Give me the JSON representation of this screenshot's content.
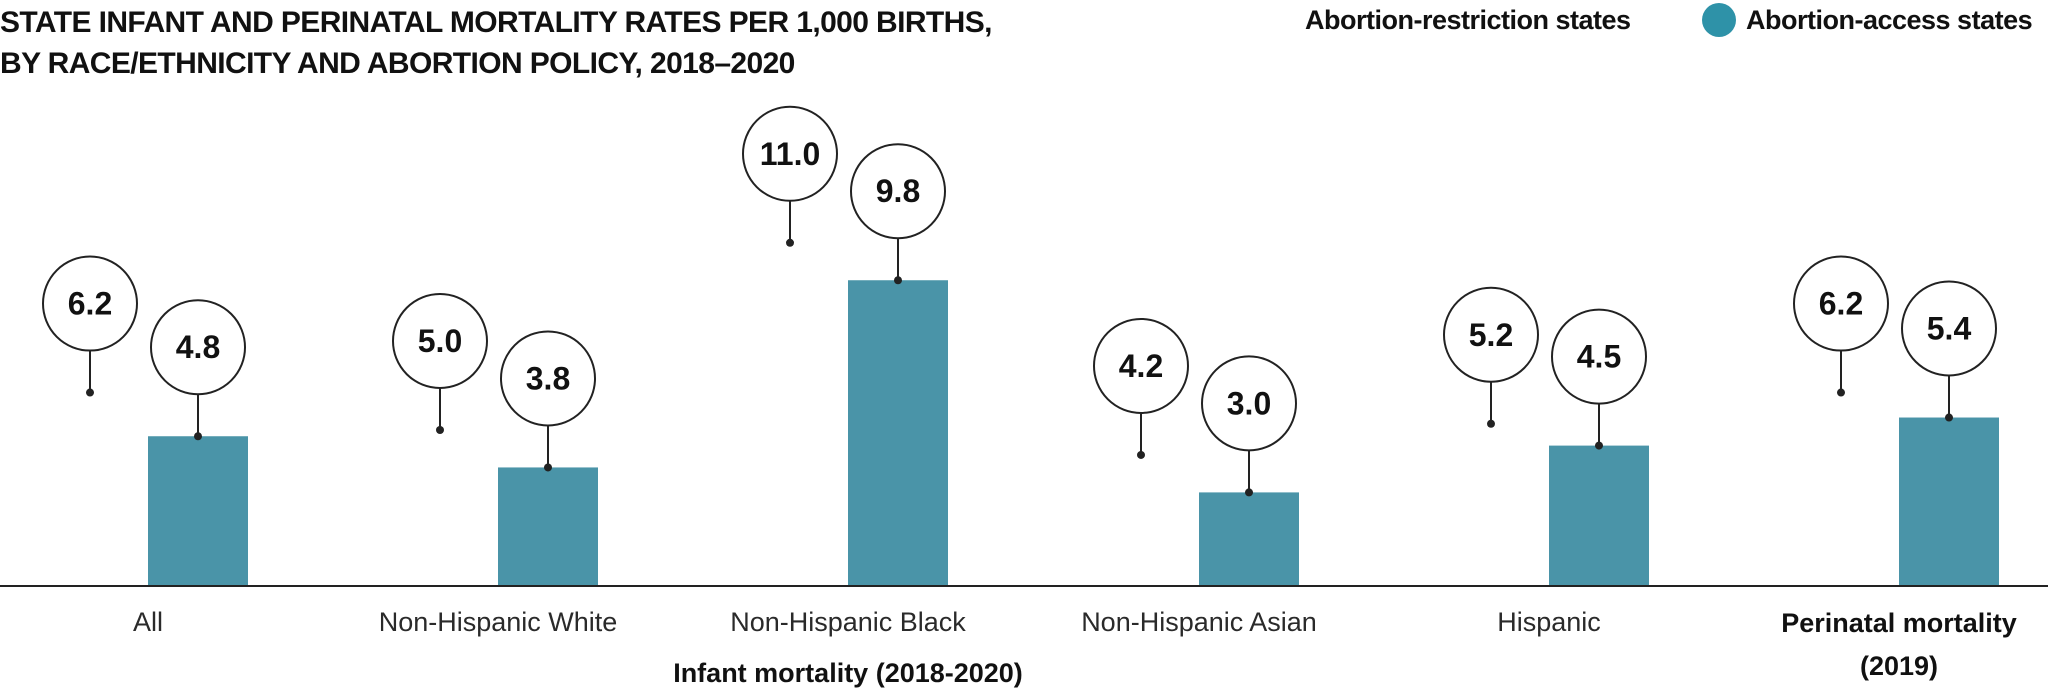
{
  "title_lines": [
    "STATE INFANT AND PERINATAL MORTALITY RATES PER 1,000 BIRTHS,",
    "BY RACE/ETHNICITY AND ABORTION POLICY, 2018–2020"
  ],
  "legend": {
    "restriction_label": "Abortion-restriction states",
    "access_label": "Abortion-access states"
  },
  "colors": {
    "access_bar": "#4a94a8",
    "access_legend": "#2e92a8",
    "axis": "#222222",
    "text": "#111111"
  },
  "chart_data": {
    "type": "bar",
    "categories": [
      "All",
      "Non-Hispanic White",
      "Non-Hispanic Black",
      "Non-Hispanic Asian",
      "Hispanic",
      "Perinatal mortality (2019)"
    ],
    "category_bold": [
      false,
      false,
      false,
      false,
      false,
      true
    ],
    "group_label": "Infant mortality (2018-2020)",
    "series": [
      {
        "name": "Abortion-restriction states",
        "values": [
          6.2,
          5.0,
          11.0,
          4.2,
          5.2,
          6.2
        ],
        "labels": [
          "6.2",
          "5.0",
          "11.0",
          "4.2",
          "5.2",
          "6.2"
        ]
      },
      {
        "name": "Abortion-access states",
        "values": [
          4.8,
          3.8,
          9.8,
          3.0,
          4.5,
          5.4
        ],
        "labels": [
          "4.8",
          "3.8",
          "9.8",
          "3.0",
          "4.5",
          "5.4"
        ]
      }
    ],
    "ylim": [
      0,
      12
    ],
    "grid": false,
    "legend_position": "top-right"
  }
}
